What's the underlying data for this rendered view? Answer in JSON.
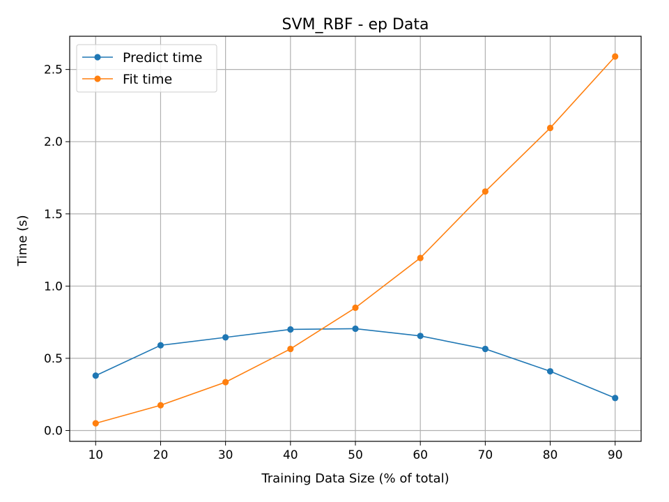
{
  "chart_data": {
    "type": "line",
    "title": "SVM_RBF - ep Data",
    "xlabel": "Training Data Size (% of total)",
    "ylabel": "Time (s)",
    "x": [
      10,
      20,
      30,
      40,
      50,
      60,
      70,
      80,
      90
    ],
    "xticks": [
      10,
      20,
      30,
      40,
      50,
      60,
      70,
      80,
      90
    ],
    "yticks": [
      0.0,
      0.5,
      1.0,
      1.5,
      2.0,
      2.5
    ],
    "ytick_labels": [
      "0.0",
      "0.5",
      "1.0",
      "1.5",
      "2.0",
      "2.5"
    ],
    "xlim": [
      6,
      94
    ],
    "ylim": [
      -0.075,
      2.73
    ],
    "grid": true,
    "legend_position": "top-left",
    "series": [
      {
        "name": "Predict time",
        "color": "#1f77b4",
        "values": [
          0.38,
          0.59,
          0.645,
          0.7,
          0.705,
          0.655,
          0.565,
          0.41,
          0.225
        ]
      },
      {
        "name": "Fit time",
        "color": "#ff7f0e",
        "values": [
          0.05,
          0.175,
          0.335,
          0.565,
          0.85,
          1.195,
          1.655,
          2.095,
          2.59
        ]
      }
    ]
  }
}
